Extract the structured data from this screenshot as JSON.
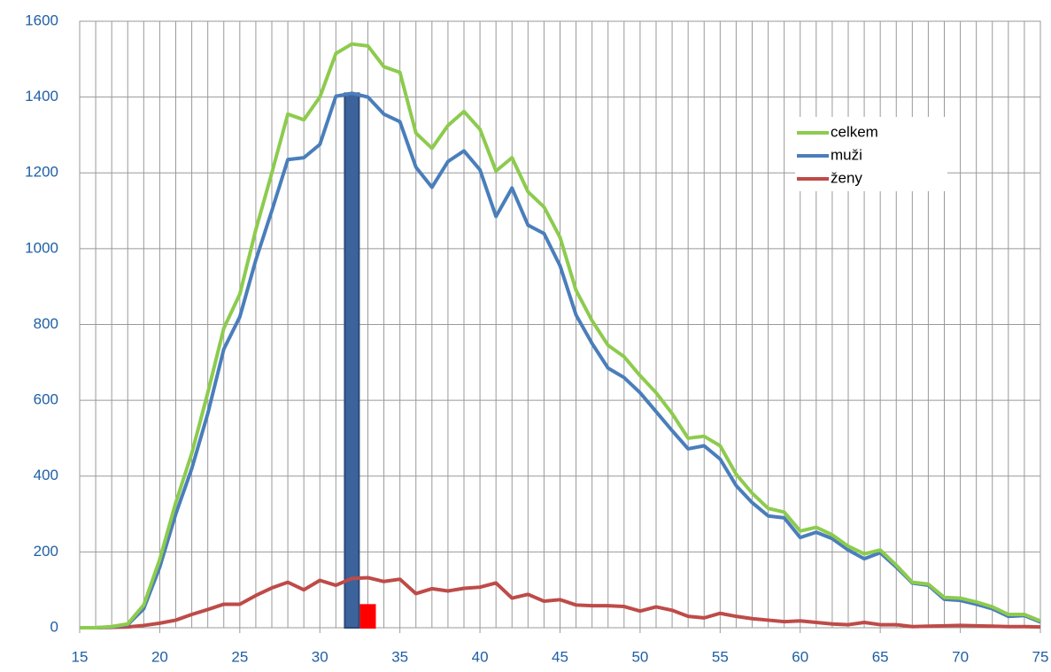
{
  "chart_data": {
    "type": "line",
    "x": [
      15,
      16,
      17,
      18,
      19,
      20,
      21,
      22,
      23,
      24,
      25,
      26,
      27,
      28,
      29,
      30,
      31,
      32,
      33,
      34,
      35,
      36,
      37,
      38,
      39,
      40,
      41,
      42,
      43,
      44,
      45,
      46,
      47,
      48,
      49,
      50,
      51,
      52,
      53,
      54,
      55,
      56,
      57,
      58,
      59,
      60,
      61,
      62,
      63,
      64,
      65,
      66,
      67,
      68,
      69,
      70,
      71,
      72,
      73,
      74,
      75
    ],
    "series": [
      {
        "name": "celkem",
        "color": "#8dcb4e",
        "values": [
          0,
          0,
          3,
          10,
          60,
          180,
          330,
          460,
          620,
          790,
          880,
          1050,
          1200,
          1355,
          1340,
          1400,
          1515,
          1540,
          1535,
          1480,
          1465,
          1305,
          1265,
          1325,
          1362,
          1315,
          1205,
          1240,
          1150,
          1110,
          1030,
          890,
          810,
          745,
          715,
          665,
          620,
          565,
          500,
          505,
          480,
          405,
          355,
          315,
          305,
          255,
          265,
          245,
          215,
          195,
          205,
          165,
          120,
          115,
          80,
          78,
          68,
          55,
          35,
          35,
          18
        ]
      },
      {
        "name": "muži",
        "color": "#4a7ebb",
        "values": [
          0,
          0,
          2,
          8,
          50,
          160,
          300,
          420,
          565,
          735,
          820,
          970,
          1100,
          1235,
          1240,
          1275,
          1402,
          1410,
          1400,
          1355,
          1335,
          1215,
          1162,
          1230,
          1258,
          1208,
          1085,
          1160,
          1062,
          1040,
          955,
          825,
          750,
          685,
          660,
          620,
          570,
          520,
          472,
          480,
          445,
          375,
          330,
          295,
          290,
          238,
          252,
          235,
          205,
          182,
          198,
          160,
          118,
          112,
          75,
          72,
          62,
          50,
          30,
          32,
          15
        ]
      },
      {
        "name": "ženy",
        "color": "#be4b48",
        "values": [
          0,
          0,
          1,
          2,
          6,
          12,
          20,
          35,
          48,
          62,
          62,
          85,
          105,
          120,
          100,
          125,
          112,
          130,
          132,
          122,
          128,
          90,
          103,
          97,
          104,
          107,
          118,
          78,
          88,
          70,
          74,
          60,
          58,
          58,
          56,
          44,
          55,
          46,
          30,
          26,
          38,
          30,
          24,
          20,
          16,
          18,
          14,
          10,
          8,
          14,
          8,
          8,
          3,
          4,
          5,
          6,
          5,
          4,
          3,
          3,
          2
        ]
      }
    ],
    "bars": {
      "x": [
        32,
        33
      ],
      "values": [
        1410,
        60
      ],
      "colors": [
        "#3c639c",
        "#ff0000"
      ]
    },
    "xlim": [
      15,
      75
    ],
    "xticks": [
      15,
      20,
      25,
      30,
      35,
      40,
      45,
      50,
      55,
      60,
      65,
      70,
      75
    ],
    "ylim": [
      0,
      1600
    ],
    "yticks": [
      0,
      200,
      400,
      600,
      800,
      1000,
      1200,
      1400,
      1600
    ],
    "grid": true,
    "legend": "upper right"
  }
}
